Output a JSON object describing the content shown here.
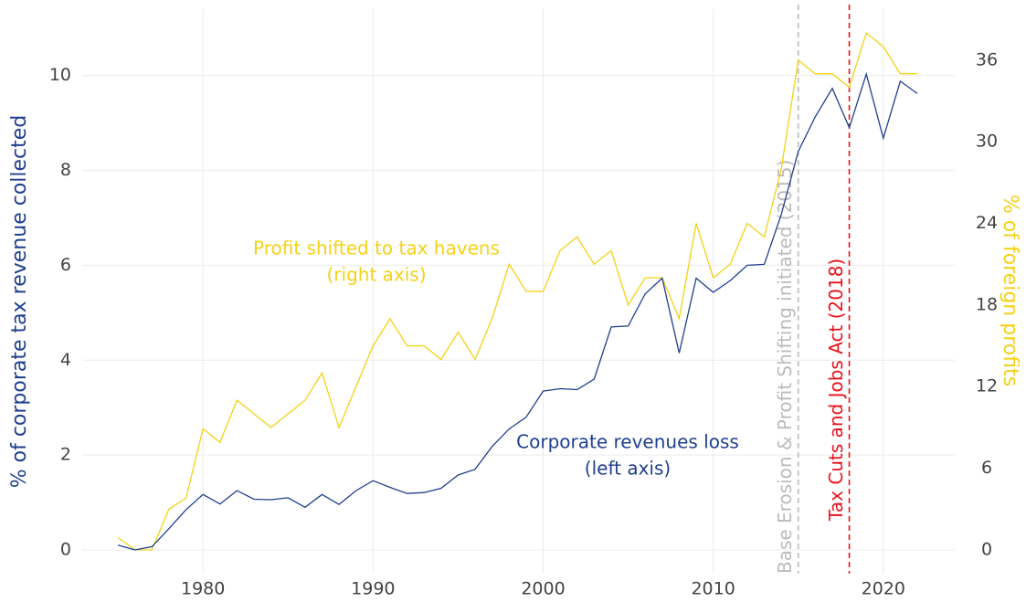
{
  "chart_data": {
    "type": "line",
    "x": [
      1975,
      1976,
      1977,
      1978,
      1979,
      1980,
      1981,
      1982,
      1983,
      1984,
      1985,
      1986,
      1987,
      1988,
      1989,
      1990,
      1991,
      1992,
      1993,
      1994,
      1995,
      1996,
      1997,
      1998,
      1999,
      2000,
      2001,
      2002,
      2003,
      2004,
      2005,
      2006,
      2007,
      2008,
      2009,
      2010,
      2011,
      2012,
      2013,
      2014,
      2015,
      2016,
      2017,
      2018,
      2019,
      2020,
      2021,
      2022
    ],
    "series": [
      {
        "name": [
          "Corporate revenues loss",
          "(left axis)"
        ],
        "color": "#1f3f8f",
        "axis": "y",
        "values": [
          0.1,
          0.0,
          0.07,
          0.45,
          0.85,
          1.17,
          0.97,
          1.25,
          1.07,
          1.06,
          1.1,
          0.9,
          1.17,
          0.96,
          1.25,
          1.46,
          1.32,
          1.19,
          1.21,
          1.3,
          1.58,
          1.7,
          2.18,
          2.55,
          2.8,
          3.35,
          3.4,
          3.38,
          3.6,
          4.7,
          4.72,
          5.4,
          5.73,
          4.15,
          5.73,
          5.43,
          5.68,
          6.0,
          6.02,
          7.07,
          8.4,
          9.13,
          9.73,
          8.9,
          10.03,
          8.68,
          9.88,
          9.62
        ]
      },
      {
        "name": [
          "Profit shifted to tax havens",
          "(right axis)"
        ],
        "color": "#f5d117",
        "axis": "y2",
        "values": [
          0.9,
          0,
          0,
          3,
          3.8,
          8.9,
          7.9,
          11,
          10,
          9,
          10,
          11,
          13,
          9,
          12,
          15,
          17,
          15,
          15,
          14,
          16,
          14,
          17,
          21,
          19,
          19,
          22,
          23,
          21,
          22,
          18,
          20,
          20,
          17,
          24,
          20,
          21,
          24,
          23,
          28,
          36,
          35,
          35,
          34,
          38,
          37,
          35,
          35
        ]
      }
    ],
    "vlines": [
      {
        "x": 2015,
        "label": "Base Erosion & Profit Shifting initiated (2015)",
        "color": "#bbbbbb"
      },
      {
        "x": 2018,
        "label": "Tax Cuts and Jobs Act (2018)",
        "color": "#e8121b"
      }
    ],
    "y_label": "% of corporate tax revenue collected",
    "y2_label": "% of foreign profits",
    "xlim": [
      1972.9,
      2024.2
    ],
    "xticks": [
      1980,
      1990,
      2000,
      2010,
      2020
    ],
    "ylim": [
      -0.5,
      11.4
    ],
    "yticks": [
      0,
      2,
      4,
      6,
      8,
      10
    ],
    "y2lim": [
      -1.75,
      39.75
    ],
    "y2ticks": [
      0,
      6,
      12,
      18,
      24,
      30,
      36
    ],
    "grid": true
  }
}
